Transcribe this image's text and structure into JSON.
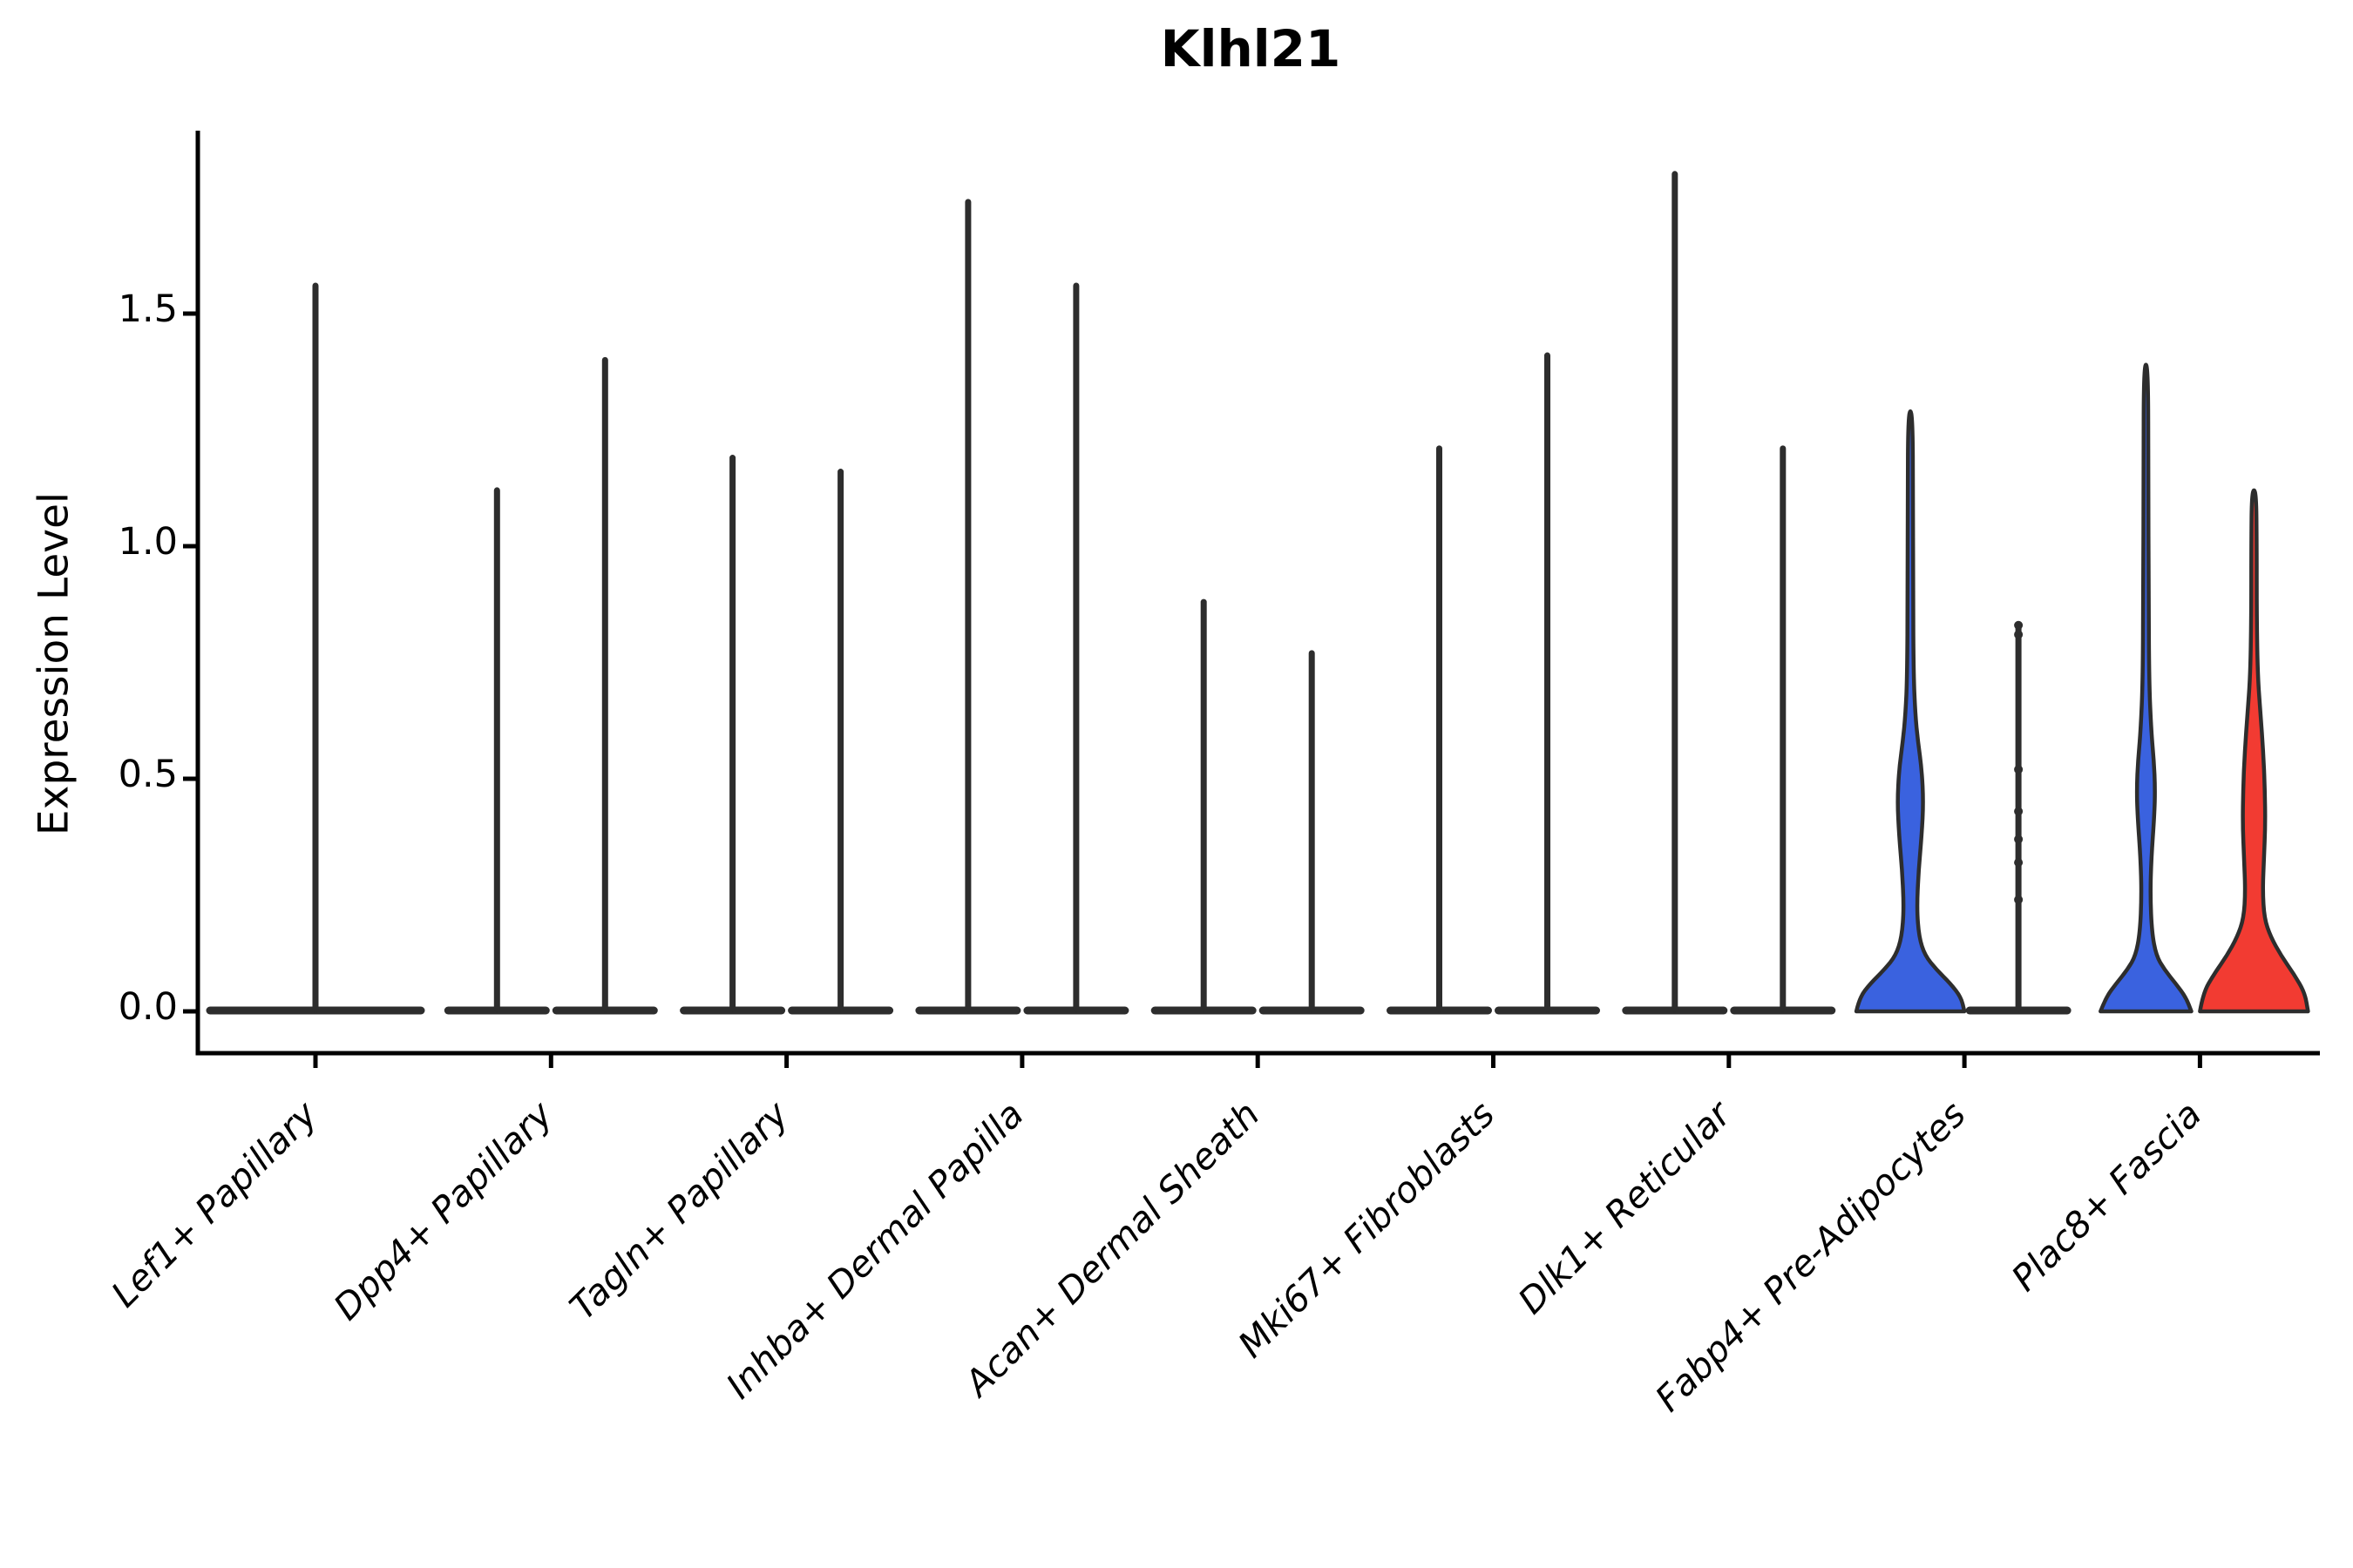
{
  "title": "Klhl21",
  "axes": {
    "ylabel": "Expression Level",
    "ytick_labels": [
      "0.0",
      "0.5",
      "1.0",
      "1.5"
    ],
    "ytick_values": [
      0.0,
      0.5,
      1.0,
      1.5
    ]
  },
  "colors": {
    "blue": "#3A62DF",
    "red": "#F23B32",
    "outline": "#2D2D2D",
    "axis": "#000000"
  },
  "chart_data": {
    "type": "violin",
    "title": "Klhl21",
    "xlabel": "",
    "ylabel": "Expression Level",
    "ylim": [
      0,
      1.9
    ],
    "yticks": [
      0.0,
      0.5,
      1.0,
      1.5
    ],
    "legend": "none",
    "grid": false,
    "categories": [
      "Lef1+ Papillary",
      "Dpp4+ Papillary",
      "Tagln+ Papillary",
      "Inhba+ Dermal Papilla",
      "Acan+ Dermal Sheath",
      "Mki67+ Fibroblasts",
      "Dlk1+ Reticular",
      "Fabp4+ Pre-Adipocytes",
      "Plac8+ Fascia"
    ],
    "groups": [
      {
        "category": "Lef1+ Papillary",
        "violins": [
          {
            "position": "single",
            "style": "plain",
            "fill": "none",
            "max": 1.56
          }
        ]
      },
      {
        "category": "Dpp4+ Papillary",
        "violins": [
          {
            "position": "left",
            "style": "plain",
            "fill": "none",
            "max": 1.12
          },
          {
            "position": "right",
            "style": "plain",
            "fill": "none",
            "max": 1.4
          }
        ]
      },
      {
        "category": "Tagln+ Papillary",
        "violins": [
          {
            "position": "left",
            "style": "plain",
            "fill": "none",
            "max": 1.19
          },
          {
            "position": "right",
            "style": "plain",
            "fill": "none",
            "max": 1.16
          }
        ]
      },
      {
        "category": "Inhba+ Dermal Papilla",
        "violins": [
          {
            "position": "left",
            "style": "plain",
            "fill": "none",
            "max": 1.74
          },
          {
            "position": "right",
            "style": "plain",
            "fill": "none",
            "max": 1.56
          }
        ]
      },
      {
        "category": "Acan+ Dermal Sheath",
        "violins": [
          {
            "position": "left",
            "style": "plain",
            "fill": "none",
            "max": 0.88
          },
          {
            "position": "right",
            "style": "plain",
            "fill": "none",
            "max": 0.77
          }
        ]
      },
      {
        "category": "Mki67+ Fibroblasts",
        "violins": [
          {
            "position": "left",
            "style": "plain",
            "fill": "none",
            "max": 1.21
          },
          {
            "position": "right",
            "style": "plain",
            "fill": "none",
            "max": 1.41
          }
        ]
      },
      {
        "category": "Dlk1+ Reticular",
        "violins": [
          {
            "position": "left",
            "style": "plain",
            "fill": "none",
            "max": 1.8
          },
          {
            "position": "right",
            "style": "plain",
            "fill": "none",
            "max": 1.21
          }
        ]
      },
      {
        "category": "Fabp4+ Pre-Adipocytes",
        "violins": [
          {
            "position": "left",
            "style": "filled",
            "fill": "blue",
            "max": 1.29,
            "density_profile": [
              [
                0,
                1.0
              ],
              [
                0.03,
                0.94
              ],
              [
                0.06,
                0.74
              ],
              [
                0.09,
                0.48
              ],
              [
                0.12,
                0.27
              ],
              [
                0.16,
                0.16
              ],
              [
                0.22,
                0.12
              ],
              [
                0.3,
                0.15
              ],
              [
                0.38,
                0.21
              ],
              [
                0.45,
                0.24
              ],
              [
                0.52,
                0.21
              ],
              [
                0.58,
                0.14
              ],
              [
                0.64,
                0.09
              ],
              [
                0.72,
                0.06
              ],
              [
                0.9,
                0.05
              ],
              [
                1.1,
                0.05
              ],
              [
                1.29,
                0.04
              ]
            ]
          },
          {
            "position": "right",
            "style": "plain",
            "fill": "none",
            "max": 0.83,
            "points": [
              0.83,
              0.81,
              0.52,
              0.43,
              0.37,
              0.32,
              0.24
            ]
          }
        ]
      },
      {
        "category": "Plac8+ Fascia",
        "violins": [
          {
            "position": "left",
            "style": "filled",
            "fill": "blue",
            "max": 1.39,
            "density_profile": [
              [
                0,
                0.84
              ],
              [
                0.03,
                0.74
              ],
              [
                0.06,
                0.55
              ],
              [
                0.09,
                0.34
              ],
              [
                0.12,
                0.19
              ],
              [
                0.17,
                0.11
              ],
              [
                0.25,
                0.08
              ],
              [
                0.33,
                0.1
              ],
              [
                0.42,
                0.155
              ],
              [
                0.48,
                0.17
              ],
              [
                0.54,
                0.145
              ],
              [
                0.6,
                0.1
              ],
              [
                0.7,
                0.06
              ],
              [
                0.9,
                0.05
              ],
              [
                1.15,
                0.045
              ],
              [
                1.39,
                0.04
              ]
            ]
          },
          {
            "position": "right",
            "style": "filled",
            "fill": "red",
            "max": 1.12,
            "density_profile": [
              [
                0,
                1.0
              ],
              [
                0.04,
                0.94
              ],
              [
                0.08,
                0.74
              ],
              [
                0.12,
                0.5
              ],
              [
                0.16,
                0.31
              ],
              [
                0.2,
                0.19
              ],
              [
                0.26,
                0.16
              ],
              [
                0.33,
                0.185
              ],
              [
                0.4,
                0.21
              ],
              [
                0.48,
                0.2
              ],
              [
                0.56,
                0.17
              ],
              [
                0.64,
                0.12
              ],
              [
                0.72,
                0.07
              ],
              [
                0.85,
                0.05
              ],
              [
                1.0,
                0.05
              ],
              [
                1.12,
                0.04
              ]
            ]
          }
        ]
      }
    ]
  }
}
